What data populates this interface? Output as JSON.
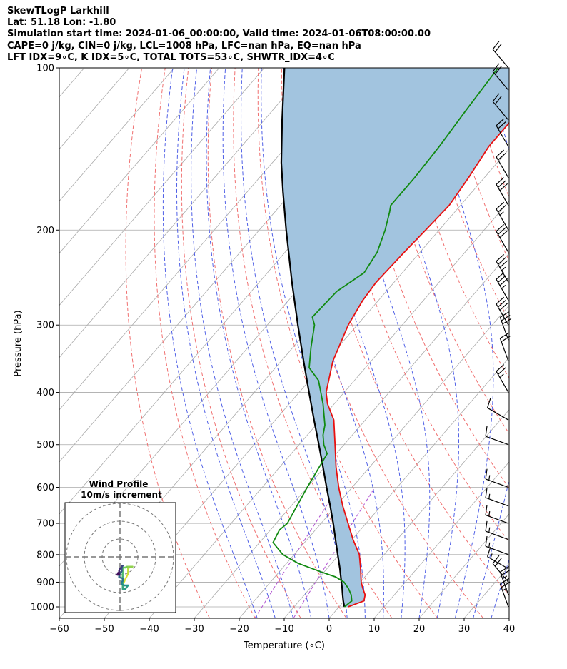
{
  "title_lines": [
    "SkewTLogP Larkhill",
    "Lat: 51.18   Lon: -1.80",
    "Simulation start time: 2024-01-06_00:00:00, Valid time: 2024-01-06T08:00:00.00",
    "CAPE=0 j/kg, CIN=0 j/kg, LCL=1008 hPa, LFC=nan hPa, EQ=nan hPa",
    "LFT IDX=9∘C, K IDX=5∘C, TOTAL TOTS=53∘C, SHWTR_IDX=4∘C"
  ],
  "chart_data": {
    "type": "line",
    "subtype": "skew-t log-p",
    "xlabel": "Temperature (∘C)",
    "ylabel": "Pressure (hPa)",
    "xlim": [
      -60,
      40
    ],
    "ylim": [
      1050,
      100
    ],
    "y_scale": "log",
    "x_ticks": [
      -60,
      -50,
      -40,
      -30,
      -20,
      -10,
      0,
      10,
      20,
      30,
      40
    ],
    "x_tick_labels": [
      "−60",
      "−50",
      "−40",
      "−30",
      "−20",
      "−10",
      "0",
      "10",
      "20",
      "30",
      "40"
    ],
    "y_ticks": [
      1000,
      900,
      800,
      700,
      600,
      500,
      400,
      300,
      200,
      100
    ],
    "y_tick_labels": [
      "1000",
      "900",
      "800",
      "700",
      "600",
      "500",
      "400",
      "300",
      "200",
      "100"
    ],
    "grid": true,
    "colors": {
      "temperature": "#e81010",
      "dewpoint": "#118a11",
      "parcel": "#000000",
      "fill": "#a2c4df",
      "isotherm": "#aaaaaa",
      "dry_adiabat": "#f07070",
      "moist_adiabat": "#5060e6",
      "mixing_ratio": "#b050d0"
    },
    "temperature_profile": [
      {
        "p": 1000,
        "t": 2.0
      },
      {
        "p": 975,
        "t": 4.4
      },
      {
        "p": 950,
        "t": 3.5
      },
      {
        "p": 925,
        "t": 1.8
      },
      {
        "p": 900,
        "t": 0.2
      },
      {
        "p": 870,
        "t": -1.4
      },
      {
        "p": 850,
        "t": -2.5
      },
      {
        "p": 800,
        "t": -5.5
      },
      {
        "p": 750,
        "t": -9.8
      },
      {
        "p": 700,
        "t": -14.0
      },
      {
        "p": 650,
        "t": -18.5
      },
      {
        "p": 600,
        "t": -23.0
      },
      {
        "p": 550,
        "t": -27.5
      },
      {
        "p": 500,
        "t": -32.0
      },
      {
        "p": 450,
        "t": -37.0
      },
      {
        "p": 420,
        "t": -41.5
      },
      {
        "p": 400,
        "t": -44.0
      },
      {
        "p": 350,
        "t": -48.5
      },
      {
        "p": 300,
        "t": -52.0
      },
      {
        "p": 270,
        "t": -53.5
      },
      {
        "p": 250,
        "t": -54.0
      },
      {
        "p": 220,
        "t": -53.5
      },
      {
        "p": 200,
        "t": -53.0
      },
      {
        "p": 180,
        "t": -52.5
      },
      {
        "p": 160,
        "t": -53.5
      },
      {
        "p": 140,
        "t": -55.0
      },
      {
        "p": 130,
        "t": -55.0
      },
      {
        "p": 120,
        "t": -55.0
      },
      {
        "p": 110,
        "t": -55.5
      },
      {
        "p": 100,
        "t": -55.5
      }
    ],
    "dewpoint_profile": [
      {
        "p": 1000,
        "t": 1.2
      },
      {
        "p": 975,
        "t": 1.7
      },
      {
        "p": 950,
        "t": 0.4
      },
      {
        "p": 925,
        "t": -1.4
      },
      {
        "p": 900,
        "t": -3.6
      },
      {
        "p": 880,
        "t": -6.5
      },
      {
        "p": 860,
        "t": -11.0
      },
      {
        "p": 830,
        "t": -17.5
      },
      {
        "p": 800,
        "t": -22.5
      },
      {
        "p": 760,
        "t": -27.0
      },
      {
        "p": 720,
        "t": -28.0
      },
      {
        "p": 700,
        "t": -27.5
      },
      {
        "p": 600,
        "t": -30.0
      },
      {
        "p": 520,
        "t": -32.0
      },
      {
        "p": 500,
        "t": -34.5
      },
      {
        "p": 480,
        "t": -36.5
      },
      {
        "p": 460,
        "t": -38.0
      },
      {
        "p": 420,
        "t": -42.5
      },
      {
        "p": 380,
        "t": -48.0
      },
      {
        "p": 360,
        "t": -52.5
      },
      {
        "p": 330,
        "t": -56.0
      },
      {
        "p": 300,
        "t": -59.5
      },
      {
        "p": 290,
        "t": -61.5
      },
      {
        "p": 260,
        "t": -61.0
      },
      {
        "p": 240,
        "t": -58.5
      },
      {
        "p": 220,
        "t": -59.5
      },
      {
        "p": 200,
        "t": -62.0
      },
      {
        "p": 185,
        "t": -64.5
      },
      {
        "p": 180,
        "t": -65.5
      },
      {
        "p": 160,
        "t": -65.5
      },
      {
        "p": 140,
        "t": -66.0
      },
      {
        "p": 120,
        "t": -67.0
      },
      {
        "p": 100,
        "t": -68.0
      }
    ],
    "parcel_profile": [
      {
        "p": 1000,
        "t": 1.2
      },
      {
        "p": 975,
        "t": -0.2
      },
      {
        "p": 950,
        "t": -1.5
      },
      {
        "p": 925,
        "t": -2.8
      },
      {
        "p": 900,
        "t": -4.2
      },
      {
        "p": 850,
        "t": -7.1
      },
      {
        "p": 800,
        "t": -10.3
      },
      {
        "p": 750,
        "t": -13.7
      },
      {
        "p": 700,
        "t": -17.3
      },
      {
        "p": 650,
        "t": -21.3
      },
      {
        "p": 600,
        "t": -25.7
      },
      {
        "p": 550,
        "t": -30.4
      },
      {
        "p": 500,
        "t": -35.6
      },
      {
        "p": 450,
        "t": -41.4
      },
      {
        "p": 400,
        "t": -47.8
      },
      {
        "p": 350,
        "t": -55.0
      },
      {
        "p": 300,
        "t": -63.2
      },
      {
        "p": 250,
        "t": -72.7
      },
      {
        "p": 200,
        "t": -84.0
      },
      {
        "p": 170,
        "t": -92.0
      },
      {
        "p": 150,
        "t": -98.0
      },
      {
        "p": 125,
        "t": -106.0
      },
      {
        "p": 100,
        "t": -115.5
      }
    ],
    "dry_adiabats_theta_c": [
      -30,
      -20,
      -10,
      0,
      10,
      20,
      30,
      40,
      50,
      60,
      70,
      80,
      90,
      100,
      110
    ],
    "moist_adiabats_start_c": [
      -16,
      -12,
      -8,
      -4,
      0,
      4,
      8,
      12,
      16,
      20,
      24,
      28,
      32,
      36,
      40
    ],
    "mixing_ratio_lines": [
      1,
      2
    ],
    "wind_barbs": [
      {
        "p": 1000,
        "speed_kt": 25,
        "dir_deg": 340
      },
      {
        "p": 950,
        "speed_kt": 25,
        "dir_deg": 340
      },
      {
        "p": 900,
        "speed_kt": 20,
        "dir_deg": 320
      },
      {
        "p": 850,
        "speed_kt": 15,
        "dir_deg": 300
      },
      {
        "p": 800,
        "speed_kt": 15,
        "dir_deg": 290
      },
      {
        "p": 750,
        "speed_kt": 15,
        "dir_deg": 290
      },
      {
        "p": 700,
        "speed_kt": 15,
        "dir_deg": 290
      },
      {
        "p": 650,
        "speed_kt": 15,
        "dir_deg": 290
      },
      {
        "p": 600,
        "speed_kt": 15,
        "dir_deg": 290
      },
      {
        "p": 500,
        "speed_kt": 10,
        "dir_deg": 290
      },
      {
        "p": 450,
        "speed_kt": 10,
        "dir_deg": 300
      },
      {
        "p": 400,
        "speed_kt": 25,
        "dir_deg": 330
      },
      {
        "p": 350,
        "speed_kt": 20,
        "dir_deg": 340
      },
      {
        "p": 320,
        "speed_kt": 30,
        "dir_deg": 340
      },
      {
        "p": 300,
        "speed_kt": 30,
        "dir_deg": 330
      },
      {
        "p": 270,
        "speed_kt": 35,
        "dir_deg": 330
      },
      {
        "p": 250,
        "speed_kt": 35,
        "dir_deg": 330
      },
      {
        "p": 220,
        "speed_kt": 30,
        "dir_deg": 330
      },
      {
        "p": 200,
        "speed_kt": 25,
        "dir_deg": 330
      },
      {
        "p": 180,
        "speed_kt": 30,
        "dir_deg": 330
      },
      {
        "p": 160,
        "speed_kt": 20,
        "dir_deg": 330
      },
      {
        "p": 140,
        "speed_kt": 20,
        "dir_deg": 330
      },
      {
        "p": 125,
        "speed_kt": 20,
        "dir_deg": 320
      },
      {
        "p": 110,
        "speed_kt": 20,
        "dir_deg": 320
      },
      {
        "p": 100,
        "speed_kt": 20,
        "dir_deg": 320
      }
    ],
    "hodograph": {
      "title": "Wind Profile",
      "subtitle": "10m/s increment",
      "ring_spacing_ms": 10,
      "rings": 3,
      "points_uv": [
        [
          2.0,
          -18.0
        ],
        [
          1.5,
          -16.0
        ],
        [
          2.5,
          -13.5
        ],
        [
          4.5,
          -9.5
        ],
        [
          4.5,
          -6.5
        ],
        [
          6.0,
          -5.5
        ],
        [
          7.0,
          -5.5
        ],
        [
          4.0,
          -5.5
        ],
        [
          3.0,
          -6.0
        ],
        [
          2.0,
          -6.0
        ],
        [
          1.5,
          -6.5
        ],
        [
          1.5,
          -9.0
        ],
        [
          1.5,
          -11.0
        ],
        [
          1.5,
          -14.5
        ],
        [
          1.5,
          -17.0
        ],
        [
          1.5,
          -18.0
        ],
        [
          3.0,
          -18.0
        ],
        [
          4.5,
          -16.0
        ],
        [
          2.5,
          -16.0
        ],
        [
          1.0,
          -15.5
        ],
        [
          1.0,
          -14.0
        ],
        [
          1.5,
          -13.5
        ],
        [
          1.5,
          -12.0
        ],
        [
          -0.5,
          -11.5
        ],
        [
          -0.5,
          -10.0
        ],
        [
          1.0,
          -8.0
        ],
        [
          1.0,
          -6.0
        ],
        [
          1.5,
          -5.0
        ],
        [
          1.0,
          -5.0
        ],
        [
          0.5,
          -6.5
        ],
        [
          0.0,
          -6.5
        ],
        [
          -0.5,
          -8.0
        ],
        [
          -0.5,
          -10.0
        ],
        [
          -1.5,
          -10.0
        ],
        [
          -1.0,
          -9.0
        ],
        [
          -0.5,
          -10.0
        ]
      ]
    }
  }
}
